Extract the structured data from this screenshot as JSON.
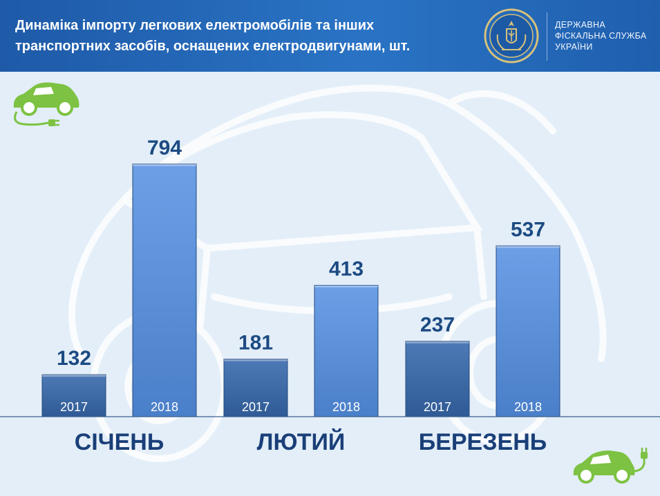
{
  "header": {
    "title_line1": "Динаміка імпорту легкових електромобілів та інших",
    "title_line2": "транспортних засобів, оснащених електродвигунами, шт.",
    "org_line1": "ДЕРЖАВНА",
    "org_line2": "ФІСКАЛЬНА СЛУЖБА",
    "org_line3": "УКРАЇНИ"
  },
  "colors": {
    "header_bg": "#2a6bbd",
    "bar_2017": "#3e6aa6",
    "bar_2018": "#5b90da",
    "value_text": "#1c4a82",
    "category_text": "#1a3f78",
    "badge_green": "#7dc242"
  },
  "icons": [
    "state-emblem-icon",
    "electric-car-plug-icon"
  ],
  "chart_data": {
    "type": "bar",
    "categories": [
      "СІЧЕНЬ",
      "ЛЮТИЙ",
      "БЕРЕЗЕНЬ"
    ],
    "series": [
      {
        "name": "2017",
        "values": [
          132,
          181,
          237
        ]
      },
      {
        "name": "2018",
        "values": [
          794,
          413,
          537
        ]
      }
    ],
    "ylim": [
      0,
      850
    ],
    "title": "",
    "xlabel": "",
    "ylabel": "",
    "grid": false,
    "legend": "none"
  }
}
